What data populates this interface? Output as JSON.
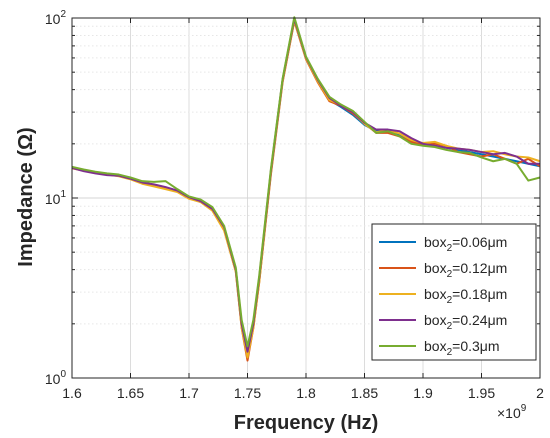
{
  "chart_data": {
    "type": "line",
    "xlabel": "Frequency (Hz)",
    "ylabel": "Impedance (Ω)",
    "x_exponent_label": "×10",
    "x_exponent_power": "9",
    "xlim": [
      1.6,
      2.0
    ],
    "ylim": [
      1,
      100
    ],
    "y_scale": "log",
    "grid": true,
    "legend_position": "bottom-right",
    "x_ticks": [
      {
        "value": 1.6,
        "label": "1.6"
      },
      {
        "value": 1.65,
        "label": "1.65"
      },
      {
        "value": 1.7,
        "label": "1.7"
      },
      {
        "value": 1.75,
        "label": "1.75"
      },
      {
        "value": 1.8,
        "label": "1.8"
      },
      {
        "value": 1.85,
        "label": "1.85"
      },
      {
        "value": 1.9,
        "label": "1.9"
      },
      {
        "value": 1.95,
        "label": "1.95"
      },
      {
        "value": 2.0,
        "label": "2"
      }
    ],
    "y_ticks": [
      {
        "value": 1,
        "base": "10",
        "power": "0"
      },
      {
        "value": 10,
        "base": "10",
        "power": "1"
      },
      {
        "value": 100,
        "base": "10",
        "power": "2"
      }
    ],
    "x": [
      1.6,
      1.61,
      1.62,
      1.63,
      1.64,
      1.65,
      1.66,
      1.67,
      1.68,
      1.69,
      1.7,
      1.71,
      1.72,
      1.73,
      1.74,
      1.745,
      1.75,
      1.755,
      1.76,
      1.77,
      1.78,
      1.79,
      1.8,
      1.81,
      1.82,
      1.83,
      1.84,
      1.85,
      1.86,
      1.87,
      1.88,
      1.89,
      1.9,
      1.91,
      1.92,
      1.93,
      1.94,
      1.95,
      1.96,
      1.97,
      1.98,
      1.99,
      2.0
    ],
    "series": [
      {
        "name": "box₂=0.06μm",
        "label_main": "box",
        "label_sub": "2",
        "label_rest": "=0.06μm",
        "color": "#0072BD",
        "values": [
          14.8,
          14.2,
          13.8,
          13.6,
          13.4,
          12.9,
          12.2,
          11.8,
          11.4,
          11.0,
          10.0,
          9.6,
          8.7,
          6.8,
          4.0,
          2.0,
          1.35,
          2.0,
          3.5,
          14.0,
          45.0,
          98.0,
          60.0,
          45.0,
          35.0,
          32.0,
          29.0,
          25.5,
          23.5,
          23.5,
          22.5,
          21.0,
          20.0,
          19.5,
          19.0,
          18.5,
          18.0,
          17.5,
          17.0,
          16.5,
          16.0,
          15.5,
          15.0
        ]
      },
      {
        "name": "box₂=0.12μm",
        "label_main": "box",
        "label_sub": "2",
        "label_rest": "=0.12μm",
        "color": "#D95319",
        "values": [
          14.7,
          14.3,
          13.9,
          13.5,
          13.3,
          12.8,
          12.1,
          11.7,
          11.3,
          10.9,
          10.0,
          9.5,
          8.6,
          6.7,
          3.9,
          1.9,
          1.25,
          1.9,
          3.4,
          13.5,
          44.0,
          96.0,
          59.0,
          44.0,
          34.5,
          32.5,
          29.5,
          26.0,
          23.0,
          23.0,
          22.0,
          20.5,
          19.8,
          20.0,
          19.5,
          18.0,
          17.5,
          17.0,
          17.5,
          16.5,
          15.5,
          16.5,
          15.0
        ]
      },
      {
        "name": "box₂=0.18μm",
        "label_main": "box",
        "label_sub": "2",
        "label_rest": "=0.18μm",
        "color": "#EDB120",
        "values": [
          14.6,
          14.2,
          13.8,
          13.5,
          13.2,
          12.7,
          12.0,
          11.6,
          11.2,
          10.8,
          9.9,
          9.5,
          8.5,
          6.6,
          3.9,
          1.9,
          1.3,
          1.9,
          3.4,
          13.8,
          44.5,
          97.0,
          59.5,
          44.5,
          35.0,
          33.0,
          30.0,
          25.8,
          23.2,
          23.8,
          22.8,
          21.0,
          20.2,
          20.5,
          19.5,
          18.8,
          18.5,
          18.0,
          18.2,
          17.5,
          17.0,
          16.8,
          16.0
        ]
      },
      {
        "name": "box₂=0.24μm",
        "label_main": "box",
        "label_sub": "2",
        "label_rest": "=0.24μm",
        "color": "#7E2F8E",
        "values": [
          14.7,
          14.1,
          13.7,
          13.4,
          13.3,
          12.8,
          12.2,
          11.9,
          11.5,
          11.0,
          10.1,
          9.6,
          8.7,
          6.9,
          4.0,
          2.0,
          1.4,
          2.0,
          3.6,
          14.2,
          45.5,
          99.0,
          60.5,
          45.5,
          36.0,
          32.5,
          30.0,
          26.2,
          24.0,
          24.0,
          23.5,
          21.5,
          20.0,
          19.5,
          19.0,
          18.8,
          18.5,
          18.0,
          17.5,
          17.8,
          17.0,
          15.5,
          15.5
        ]
      },
      {
        "name": "box₂=0.3μm",
        "label_main": "box",
        "label_sub": "2",
        "label_rest": "=0.3μm",
        "color": "#77AC30",
        "values": [
          14.9,
          14.4,
          14.0,
          13.7,
          13.5,
          13.0,
          12.4,
          12.3,
          12.4,
          11.2,
          10.2,
          9.8,
          8.9,
          7.0,
          4.1,
          2.1,
          1.5,
          2.1,
          3.7,
          14.5,
          46.0,
          101.0,
          61.0,
          46.0,
          36.5,
          33.0,
          30.5,
          26.5,
          23.0,
          23.5,
          22.0,
          20.0,
          19.5,
          19.2,
          18.5,
          18.0,
          17.8,
          16.8,
          16.0,
          16.5,
          15.5,
          12.5,
          13.0
        ]
      }
    ]
  }
}
